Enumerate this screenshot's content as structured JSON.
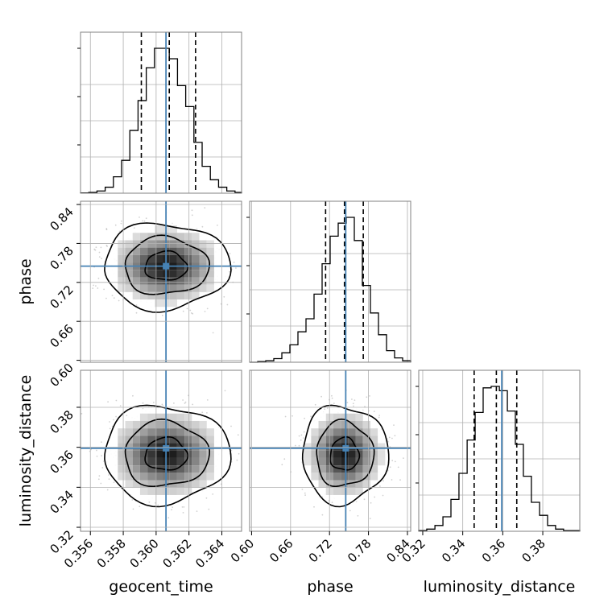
{
  "chart_data": {
    "type": "corner",
    "parameters": [
      "geocent_time",
      "phase",
      "luminosity_distance"
    ],
    "axis_labels": {
      "geocent_time": "geocent_time",
      "phase": "phase",
      "luminosity_distance": "luminosity_distance"
    },
    "ranges": {
      "geocent_time": [
        0.3554,
        0.3652
      ],
      "phase": [
        0.597,
        0.845
      ],
      "luminosity_distance": [
        0.318,
        0.3985
      ]
    },
    "ticks": {
      "geocent_time": [
        "0.356",
        "0.358",
        "0.360",
        "0.362",
        "0.364"
      ],
      "phase": [
        "0.60",
        "0.66",
        "0.72",
        "0.78",
        "0.84"
      ],
      "luminosity_distance": [
        "0.32",
        "0.34",
        "0.36",
        "0.38"
      ]
    },
    "truths": {
      "geocent_time": 0.3606,
      "phase": 0.745,
      "luminosity_distance": 0.3595
    },
    "quantiles": {
      "geocent_time": [
        0.3591,
        0.3608,
        0.3624
      ],
      "phase": [
        0.714,
        0.743,
        0.772
      ],
      "luminosity_distance": [
        0.3457,
        0.3568,
        0.367
      ]
    },
    "histograms": {
      "geocent_time": {
        "edges": [
          0.3554,
          0.3559,
          0.3564,
          0.3569,
          0.3574,
          0.3579,
          0.3584,
          0.3589,
          0.3594,
          0.3599,
          0.3604,
          0.3608,
          0.3613,
          0.3618,
          0.3623,
          0.3628,
          0.3633,
          0.3638,
          0.3643,
          0.3648,
          0.3652
        ],
        "counts": [
          0.002,
          0.005,
          0.015,
          0.04,
          0.11,
          0.22,
          0.42,
          0.62,
          0.84,
          0.97,
          0.97,
          0.9,
          0.72,
          0.58,
          0.34,
          0.18,
          0.09,
          0.04,
          0.015,
          0.005
        ]
      },
      "phase": {
        "edges": [
          0.597,
          0.6094,
          0.6218,
          0.6342,
          0.6466,
          0.659,
          0.6714,
          0.6838,
          0.6962,
          0.7086,
          0.721,
          0.7334,
          0.7458,
          0.7582,
          0.7706,
          0.783,
          0.7954,
          0.8078,
          0.8202,
          0.8326,
          0.845
        ],
        "counts": [
          0.0,
          0.005,
          0.01,
          0.025,
          0.065,
          0.12,
          0.21,
          0.3,
          0.47,
          0.68,
          0.87,
          0.96,
          1.0,
          0.84,
          0.53,
          0.34,
          0.19,
          0.08,
          0.03,
          0.01
        ]
      },
      "luminosity_distance": {
        "edges": [
          0.318,
          0.322,
          0.3261,
          0.3301,
          0.3341,
          0.3381,
          0.3422,
          0.3462,
          0.3502,
          0.3542,
          0.3583,
          0.3623,
          0.3663,
          0.3703,
          0.3743,
          0.3784,
          0.3824,
          0.3864,
          0.3904,
          0.3945,
          0.3985
        ],
        "counts": [
          0.005,
          0.015,
          0.04,
          0.1,
          0.22,
          0.4,
          0.63,
          0.82,
          0.99,
          1.0,
          0.97,
          0.83,
          0.6,
          0.38,
          0.2,
          0.11,
          0.04,
          0.015,
          0.005,
          0.005
        ]
      }
    },
    "marginal_styles": {
      "line_color": "#000000",
      "quantile_color": "#000000",
      "truth_color": "#4682b4"
    },
    "grid": true,
    "twod": [
      {
        "x": "geocent_time",
        "y": "phase",
        "center": [
          0.3606,
          0.745
        ],
        "spread": [
          0.00165,
          0.0285
        ],
        "levels": [
          0.5,
          1.0,
          1.5
        ]
      },
      {
        "x": "geocent_time",
        "y": "luminosity_distance",
        "center": [
          0.3606,
          0.3565
        ],
        "spread": [
          0.00165,
          0.0105
        ],
        "levels": [
          0.5,
          1.0,
          1.5
        ]
      },
      {
        "x": "phase",
        "y": "luminosity_distance",
        "center": [
          0.743,
          0.3565
        ],
        "spread": [
          0.0285,
          0.0105
        ],
        "levels": [
          0.5,
          1.0,
          1.5
        ]
      }
    ]
  }
}
